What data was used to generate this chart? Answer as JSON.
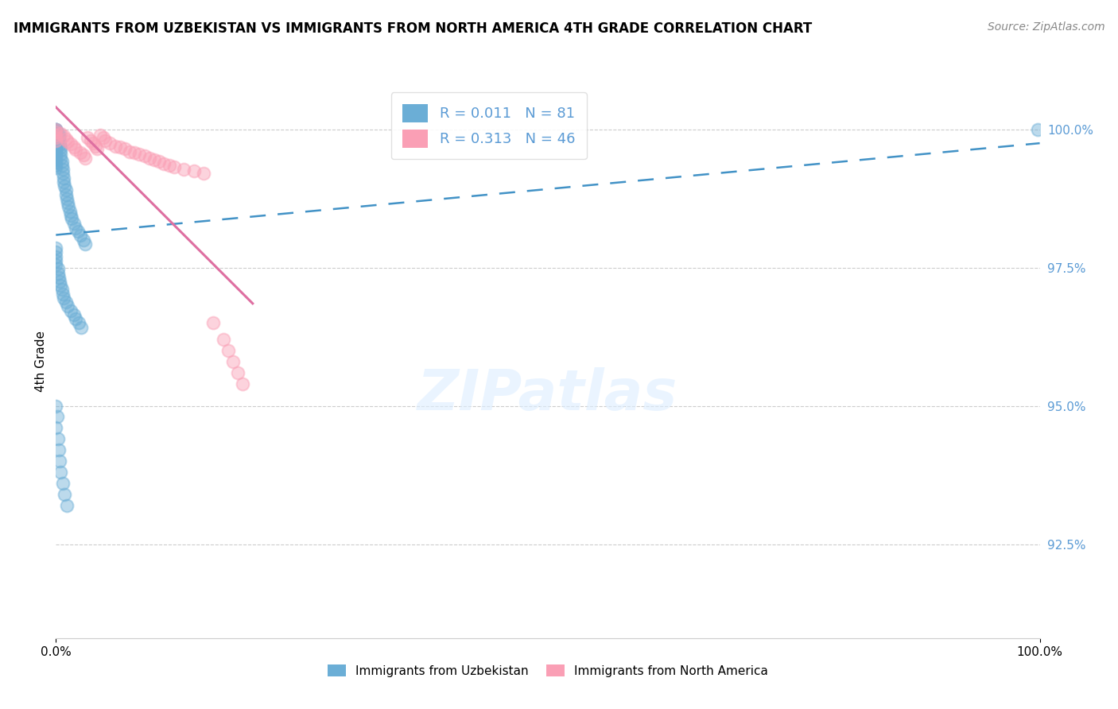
{
  "title": "IMMIGRANTS FROM UZBEKISTAN VS IMMIGRANTS FROM NORTH AMERICA 4TH GRADE CORRELATION CHART",
  "source": "Source: ZipAtlas.com",
  "ylabel": "4th Grade",
  "xlabel": "",
  "xmin": 0.0,
  "xmax": 1.0,
  "ymin": 0.908,
  "ymax": 1.008,
  "yticks": [
    0.925,
    0.95,
    0.975,
    1.0
  ],
  "ytick_labels": [
    "92.5%",
    "95.0%",
    "97.5%",
    "100.0%"
  ],
  "xticks": [
    0.0,
    1.0
  ],
  "xtick_labels": [
    "0.0%",
    "100.0%"
  ],
  "legend_label1": "Immigrants from Uzbekistan",
  "legend_label2": "Immigrants from North America",
  "R1": 0.011,
  "N1": 81,
  "R2": 0.313,
  "N2": 46,
  "color1": "#6baed6",
  "color2": "#fa9fb5",
  "trend_color1": "#4292c6",
  "trend_color2": "#de6fa1",
  "background_color": "#ffffff",
  "grid_color": "#cccccc",
  "scatter1_x": [
    0.0,
    0.0,
    0.0,
    0.0,
    0.0,
    0.0,
    0.0,
    0.0,
    0.0,
    0.0,
    0.0,
    0.0,
    0.0,
    0.0,
    0.0,
    0.0,
    0.0,
    0.0,
    0.0,
    0.0,
    0.003,
    0.003,
    0.003,
    0.004,
    0.004,
    0.005,
    0.005,
    0.005,
    0.005,
    0.006,
    0.006,
    0.007,
    0.007,
    0.008,
    0.008,
    0.009,
    0.01,
    0.01,
    0.011,
    0.012,
    0.013,
    0.014,
    0.015,
    0.016,
    0.018,
    0.02,
    0.022,
    0.025,
    0.028,
    0.03,
    0.0,
    0.0,
    0.0,
    0.0,
    0.0,
    0.002,
    0.002,
    0.003,
    0.004,
    0.005,
    0.006,
    0.007,
    0.008,
    0.01,
    0.012,
    0.015,
    0.018,
    0.02,
    0.023,
    0.026,
    0.0,
    0.0,
    0.001,
    0.002,
    0.003,
    0.004,
    0.005,
    0.007,
    0.009,
    0.011,
    0.998
  ],
  "scatter1_y": [
    1.0,
    1.0,
    1.0,
    0.9995,
    0.9995,
    0.999,
    0.999,
    0.9985,
    0.9985,
    0.998,
    0.9975,
    0.997,
    0.9965,
    0.996,
    0.9955,
    0.995,
    0.9945,
    0.994,
    0.9935,
    0.993,
    0.9992,
    0.9988,
    0.9985,
    0.9978,
    0.9972,
    0.9968,
    0.9962,
    0.9955,
    0.9948,
    0.9942,
    0.9935,
    0.9928,
    0.992,
    0.9912,
    0.9905,
    0.9898,
    0.989,
    0.9882,
    0.9875,
    0.9868,
    0.986,
    0.9852,
    0.9845,
    0.9838,
    0.983,
    0.9822,
    0.9815,
    0.9808,
    0.98,
    0.9793,
    0.9785,
    0.9778,
    0.977,
    0.9762,
    0.9755,
    0.9748,
    0.974,
    0.9732,
    0.9725,
    0.9718,
    0.971,
    0.9702,
    0.9695,
    0.9688,
    0.968,
    0.9672,
    0.9665,
    0.9658,
    0.965,
    0.9642,
    0.95,
    0.946,
    0.948,
    0.944,
    0.942,
    0.94,
    0.938,
    0.936,
    0.934,
    0.932,
    1.0
  ],
  "scatter2_x": [
    0.0,
    0.0,
    0.0,
    0.0,
    0.0,
    0.005,
    0.008,
    0.01,
    0.012,
    0.015,
    0.018,
    0.02,
    0.025,
    0.028,
    0.03,
    0.032,
    0.035,
    0.038,
    0.04,
    0.042,
    0.045,
    0.048,
    0.05,
    0.055,
    0.06,
    0.065,
    0.07,
    0.075,
    0.08,
    0.085,
    0.09,
    0.095,
    0.1,
    0.105,
    0.11,
    0.115,
    0.12,
    0.13,
    0.14,
    0.15,
    0.16,
    0.17,
    0.175,
    0.18,
    0.185,
    0.19
  ],
  "scatter2_y": [
    1.0,
    0.9995,
    0.999,
    0.9985,
    0.998,
    0.9993,
    0.9988,
    0.9983,
    0.9978,
    0.9973,
    0.9968,
    0.9963,
    0.9958,
    0.9953,
    0.9948,
    0.9985,
    0.998,
    0.9975,
    0.997,
    0.9965,
    0.999,
    0.9985,
    0.998,
    0.9975,
    0.997,
    0.9968,
    0.9965,
    0.996,
    0.9958,
    0.9955,
    0.9952,
    0.9948,
    0.9945,
    0.9942,
    0.9938,
    0.9935,
    0.9932,
    0.9928,
    0.9925,
    0.9921,
    0.965,
    0.962,
    0.96,
    0.958,
    0.956,
    0.954
  ]
}
